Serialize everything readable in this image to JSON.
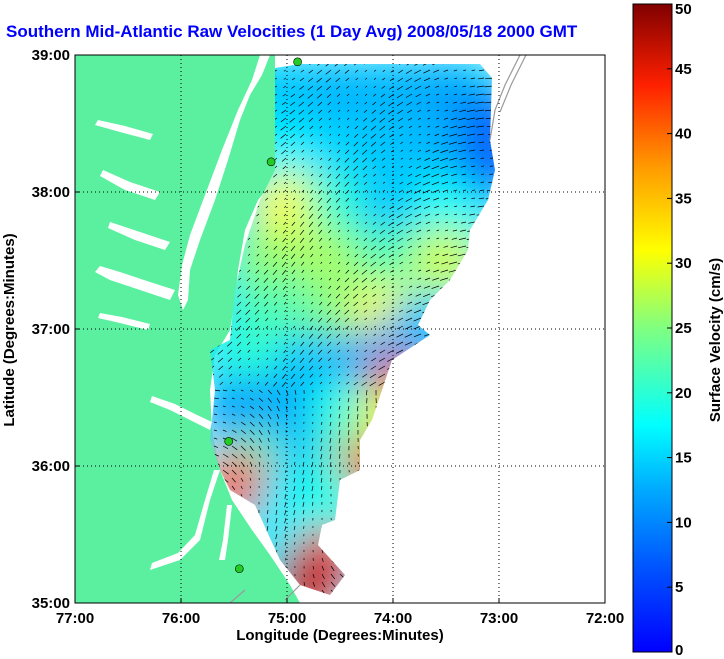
{
  "chart_data": {
    "type": "heatmap",
    "title": "Southern Mid-Atlantic Raw Velocities (1 Day Avg) 2008/05/18 2000 GMT",
    "xlabel": "Longitude (Degrees:Minutes)",
    "ylabel": "Latitude (Degrees:Minutes)",
    "xlim": [
      -77,
      -72
    ],
    "ylim": [
      35,
      39
    ],
    "x_ticks": [
      {
        "value": -77,
        "label": "77:00"
      },
      {
        "value": -76,
        "label": "76:00"
      },
      {
        "value": -75,
        "label": "75:00"
      },
      {
        "value": -74,
        "label": "74:00"
      },
      {
        "value": -73,
        "label": "73:00"
      },
      {
        "value": -72,
        "label": "72:00"
      }
    ],
    "y_ticks": [
      {
        "value": 35,
        "label": "35:00"
      },
      {
        "value": 36,
        "label": "36:00"
      },
      {
        "value": 37,
        "label": "37:00"
      },
      {
        "value": 38,
        "label": "38:00"
      },
      {
        "value": 39,
        "label": "39:00"
      }
    ],
    "grid": true,
    "colorbar": {
      "label": "Surface Velocity (cm/s)",
      "range": [
        0,
        50
      ],
      "ticks": [
        0,
        5,
        10,
        15,
        20,
        25,
        30,
        35,
        40,
        45,
        50
      ],
      "colormap": "jet"
    },
    "colors": {
      "land": "#5af0a0",
      "water_inland": "#ffffff",
      "title": "#0000ff"
    },
    "stations": [
      {
        "lon": -74.9,
        "lat": 38.95
      },
      {
        "lon": -75.15,
        "lat": 38.22
      },
      {
        "lon": -75.55,
        "lat": 36.18
      },
      {
        "lon": -75.45,
        "lat": 35.25
      }
    ],
    "speed_cells": [
      {
        "lon": -75.0,
        "lat": 38.7,
        "speed": 14
      },
      {
        "lon": -74.5,
        "lat": 38.7,
        "speed": 13
      },
      {
        "lon": -74.0,
        "lat": 38.7,
        "speed": 13
      },
      {
        "lon": -73.5,
        "lat": 38.7,
        "speed": 12
      },
      {
        "lon": -73.1,
        "lat": 38.5,
        "speed": 7
      },
      {
        "lon": -75.0,
        "lat": 38.3,
        "speed": 17
      },
      {
        "lon": -74.5,
        "lat": 38.3,
        "speed": 15
      },
      {
        "lon": -74.0,
        "lat": 38.3,
        "speed": 14
      },
      {
        "lon": -73.5,
        "lat": 38.3,
        "speed": 13
      },
      {
        "lon": -73.1,
        "lat": 38.2,
        "speed": 7
      },
      {
        "lon": -75.0,
        "lat": 37.9,
        "speed": 31
      },
      {
        "lon": -74.5,
        "lat": 37.9,
        "speed": 20
      },
      {
        "lon": -74.0,
        "lat": 37.9,
        "speed": 14
      },
      {
        "lon": -73.5,
        "lat": 37.9,
        "speed": 18
      },
      {
        "lon": -75.2,
        "lat": 37.5,
        "speed": 26
      },
      {
        "lon": -74.6,
        "lat": 37.5,
        "speed": 27
      },
      {
        "lon": -74.0,
        "lat": 37.5,
        "speed": 22
      },
      {
        "lon": -73.5,
        "lat": 37.5,
        "speed": 29
      },
      {
        "lon": -75.2,
        "lat": 37.1,
        "speed": 22
      },
      {
        "lon": -74.6,
        "lat": 37.1,
        "speed": 25
      },
      {
        "lon": -74.1,
        "lat": 37.1,
        "speed": 31
      },
      {
        "lon": -73.8,
        "lat": 36.95,
        "speed": 13
      },
      {
        "lon": -75.3,
        "lat": 36.75,
        "speed": 20
      },
      {
        "lon": -74.8,
        "lat": 36.75,
        "speed": 14
      },
      {
        "lon": -74.3,
        "lat": 36.75,
        "speed": 12
      },
      {
        "lon": -73.95,
        "lat": 36.55,
        "speed": 44
      },
      {
        "lon": -75.45,
        "lat": 36.4,
        "speed": 11
      },
      {
        "lon": -75.0,
        "lat": 36.4,
        "speed": 12
      },
      {
        "lon": -74.5,
        "lat": 36.4,
        "speed": 19
      },
      {
        "lon": -74.05,
        "lat": 36.3,
        "speed": 30
      },
      {
        "lon": -75.3,
        "lat": 36.05,
        "speed": 22
      },
      {
        "lon": -74.8,
        "lat": 36.05,
        "speed": 14
      },
      {
        "lon": -74.4,
        "lat": 36.05,
        "speed": 22
      },
      {
        "lon": -74.2,
        "lat": 35.95,
        "speed": 43
      },
      {
        "lon": -75.45,
        "lat": 35.85,
        "speed": 42
      },
      {
        "lon": -75.0,
        "lat": 35.75,
        "speed": 16
      },
      {
        "lon": -74.6,
        "lat": 35.75,
        "speed": 19
      },
      {
        "lon": -74.9,
        "lat": 35.45,
        "speed": 17
      },
      {
        "lon": -74.65,
        "lat": 35.3,
        "speed": 44
      },
      {
        "lon": -74.8,
        "lat": 35.15,
        "speed": 47
      }
    ]
  }
}
